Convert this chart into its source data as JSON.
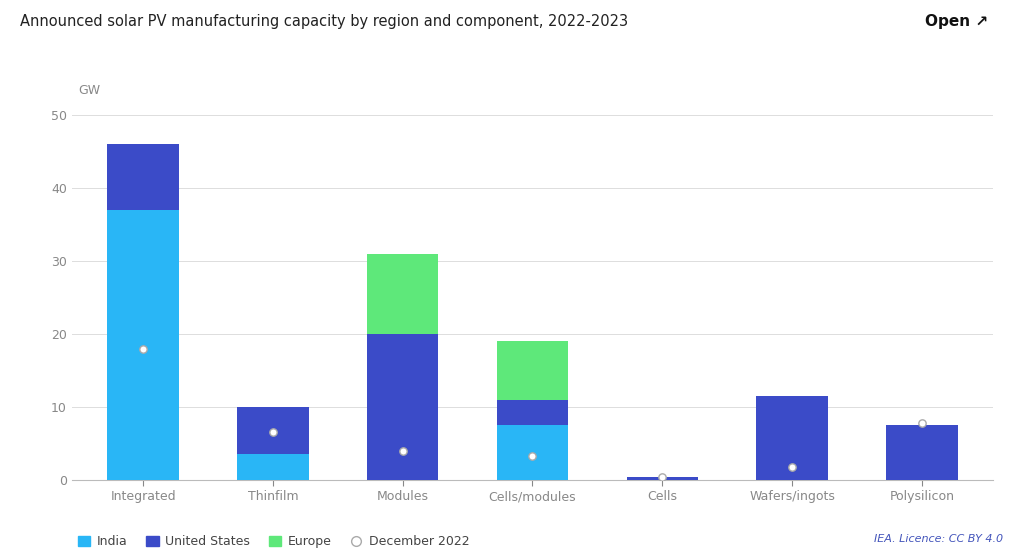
{
  "title": "Announced solar PV manufacturing capacity by region and component, 2022-2023",
  "ylabel": "GW",
  "categories": [
    "Integrated",
    "Thinfilm",
    "Modules",
    "Cells/modules",
    "Cells",
    "Wafers/ingots",
    "Polysilicon"
  ],
  "india": [
    37.0,
    3.5,
    0.0,
    7.5,
    0.0,
    0.0,
    0.0
  ],
  "us": [
    9.0,
    6.5,
    20.0,
    3.5,
    0.4,
    11.5,
    7.5
  ],
  "europe": [
    0.0,
    0.0,
    11.0,
    8.0,
    0.0,
    0.0,
    0.0
  ],
  "dec2022": [
    18.0,
    6.5,
    4.0,
    3.3,
    0.35,
    1.8,
    7.8
  ],
  "color_india": "#29B6F6",
  "color_us": "#3B4BC8",
  "color_europe": "#5EE87A",
  "color_dec2022_face": "#FFFFFF",
  "color_dec2022_edge": "#AAAAAA",
  "ylim": [
    0,
    52
  ],
  "yticks": [
    0,
    10,
    20,
    30,
    40,
    50
  ],
  "background_color": "#FFFFFF",
  "grid_color": "#DDDDDD",
  "title_fontsize": 10.5,
  "tick_fontsize": 9,
  "legend_labels": [
    "India",
    "United States",
    "Europe",
    "December 2022"
  ],
  "caption": "IEA. Licence: CC BY 4.0",
  "bar_width": 0.55
}
